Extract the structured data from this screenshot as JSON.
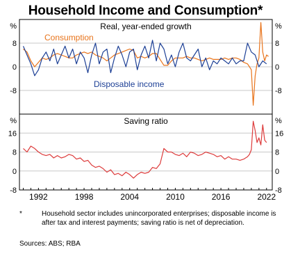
{
  "title": "Household Income and Consumption*",
  "footnote": {
    "marker": "*",
    "text": "Household sector includes unincorporated enterprises; disposable income is after tax and interest payments; saving ratio is net of depreciation."
  },
  "sources": "Sources: ABS; RBA",
  "colors": {
    "consumption": "#e8731a",
    "disposable_income": "#1c3f95",
    "saving_ratio": "#dd3b3b",
    "grid": "#c8c8c8"
  },
  "chart_data": [
    {
      "type": "line",
      "title": "Real, year-ended growth",
      "ylabel": "%",
      "ylim": [
        -16,
        16
      ],
      "yticks": [
        -8,
        0,
        8
      ],
      "xlim": [
        1989.5,
        2022.75
      ],
      "xticks": [
        1992,
        1998,
        2004,
        2010,
        2016,
        2022
      ],
      "series": [
        {
          "name": "Consumption",
          "x": [
            1990,
            1990.5,
            1991,
            1991.5,
            1992,
            1992.5,
            1993,
            1993.5,
            1994,
            1994.5,
            1995,
            1995.5,
            1996,
            1996.5,
            1997,
            1997.5,
            1998,
            1998.5,
            1999,
            1999.5,
            2000,
            2000.5,
            2001,
            2001.5,
            2002,
            2002.5,
            2003,
            2003.5,
            2004,
            2004.5,
            2005,
            2005.5,
            2006,
            2006.5,
            2007,
            2007.5,
            2008,
            2008.5,
            2009,
            2009.5,
            2010,
            2010.5,
            2011,
            2011.5,
            2012,
            2012.5,
            2013,
            2013.5,
            2014,
            2014.5,
            2015,
            2015.5,
            2016,
            2016.5,
            2017,
            2017.5,
            2018,
            2018.5,
            2019,
            2019.5,
            2019.75,
            2020,
            2020.25,
            2020.5,
            2020.75,
            2021,
            2021.25,
            2021.5,
            2021.75,
            2022,
            2022.25
          ],
          "values": [
            6,
            5,
            2,
            0,
            1.5,
            3,
            2.5,
            3,
            4,
            4.5,
            4,
            3.5,
            3,
            3,
            4,
            4.5,
            5,
            4.5,
            5,
            4,
            3.5,
            3,
            2,
            3,
            4,
            4.5,
            5,
            5.5,
            6,
            5.5,
            3,
            3.5,
            3,
            3.5,
            4.5,
            4.5,
            2.5,
            0.5,
            0.5,
            2,
            3,
            3,
            3,
            3.5,
            3,
            3,
            2.5,
            2,
            2.5,
            3,
            2.5,
            2.5,
            2.5,
            3,
            2.5,
            3,
            3,
            2.5,
            1.5,
            1,
            0,
            -1,
            -13,
            -3,
            1,
            3,
            15,
            5,
            2,
            4,
            3.5
          ]
        },
        {
          "name": "Disposable income",
          "x": [
            1990,
            1990.5,
            1991,
            1991.5,
            1992,
            1992.5,
            1993,
            1993.5,
            1994,
            1994.5,
            1995,
            1995.5,
            1996,
            1996.5,
            1997,
            1997.5,
            1998,
            1998.5,
            1999,
            1999.5,
            2000,
            2000.5,
            2001,
            2001.5,
            2002,
            2002.5,
            2003,
            2003.5,
            2004,
            2004.5,
            2005,
            2005.5,
            2006,
            2006.5,
            2007,
            2007.5,
            2008,
            2008.5,
            2009,
            2009.5,
            2010,
            2010.5,
            2011,
            2011.5,
            2012,
            2012.5,
            2013,
            2013.5,
            2014,
            2014.5,
            2015,
            2015.5,
            2016,
            2016.5,
            2017,
            2017.5,
            2018,
            2018.5,
            2019,
            2019.5,
            2020,
            2020.5,
            2021,
            2021.5,
            2022
          ],
          "values": [
            7,
            4,
            1,
            -3,
            -1,
            3,
            5,
            2,
            6,
            1,
            4,
            7,
            3,
            6,
            1,
            5,
            3,
            -2,
            4,
            8,
            1,
            5,
            6,
            -2,
            3,
            7,
            4,
            0,
            5,
            6,
            -1,
            4,
            7,
            3,
            9,
            2,
            8,
            6,
            1,
            4,
            0,
            5,
            8,
            3,
            2,
            4,
            6,
            0,
            3,
            -1,
            2,
            1,
            3,
            2,
            1,
            3,
            1,
            2,
            2,
            8,
            5,
            4,
            0,
            2,
            1
          ]
        }
      ]
    },
    {
      "type": "line",
      "title": "Saving ratio",
      "ylabel": "%",
      "ylim": [
        -8,
        24
      ],
      "yticks": [
        -8,
        0,
        8,
        16
      ],
      "xlim": [
        1989.5,
        2022.75
      ],
      "xticks": [
        1992,
        1998,
        2004,
        2010,
        2016,
        2022
      ],
      "series": [
        {
          "name": "",
          "x": [
            1990,
            1990.5,
            1991,
            1991.5,
            1992,
            1992.5,
            1993,
            1993.5,
            1994,
            1994.5,
            1995,
            1995.5,
            1996,
            1996.5,
            1997,
            1997.5,
            1998,
            1998.5,
            1999,
            1999.5,
            2000,
            2000.5,
            2001,
            2001.5,
            2002,
            2002.5,
            2003,
            2003.5,
            2004,
            2004.5,
            2005,
            2005.5,
            2006,
            2006.5,
            2007,
            2007.5,
            2008,
            2008.5,
            2009,
            2009.5,
            2010,
            2010.5,
            2011,
            2011.5,
            2012,
            2012.5,
            2013,
            2013.5,
            2014,
            2014.5,
            2015,
            2015.5,
            2016,
            2016.5,
            2017,
            2017.5,
            2018,
            2018.5,
            2019,
            2019.5,
            2019.75,
            2020,
            2020.25,
            2020.5,
            2020.75,
            2021,
            2021.25,
            2021.5,
            2021.75,
            2022
          ],
          "values": [
            9.5,
            8,
            10.5,
            9.5,
            8,
            7,
            6.5,
            7,
            5.5,
            6.5,
            5.5,
            6,
            7,
            6.5,
            5,
            5.5,
            4,
            4.5,
            2.5,
            1.5,
            2,
            1,
            -0.5,
            0.5,
            -1.5,
            -1,
            -2,
            -0.5,
            -1.5,
            -3,
            -1.5,
            -0.5,
            -1,
            -0.5,
            1.5,
            1,
            3,
            9.5,
            8,
            8,
            7,
            6.5,
            7.5,
            6,
            8,
            7.5,
            6.5,
            7,
            8,
            7.5,
            7,
            6,
            6.5,
            5,
            6,
            5,
            5,
            4.5,
            5,
            6,
            7,
            9,
            21,
            17,
            12,
            14,
            11,
            19.5,
            13,
            12
          ]
        }
      ]
    }
  ]
}
